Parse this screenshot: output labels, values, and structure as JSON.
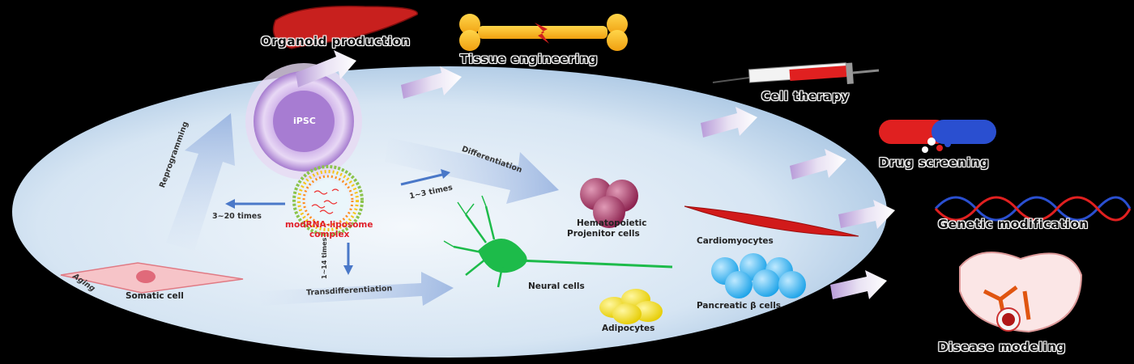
{
  "center": {
    "ipsc": "iPSC",
    "reprogramming": "Reprogramming",
    "differentiation": "Differentiation",
    "transdifferentiation": "Transdifferentiation",
    "somatic": "Somatic cell",
    "somatic_tag": "Aging",
    "complex_line1": "modRNA-liposome",
    "complex_line2": "complex",
    "times_left": "3~20 times",
    "times_right": "1~3 times",
    "times_down": "1~14 times"
  },
  "cells": {
    "hematopoietic_line1": "Hematopoietic",
    "hematopoietic_line2": "Projenitor cells",
    "neural": "Neural cells",
    "adipocytes": "Adipocytes",
    "cardiomyocytes": "Cardiomyocytes",
    "pancreatic": "Pancreatic β cells"
  },
  "applications": {
    "organoid": "Organoid production",
    "tissue": "Tissue engineering",
    "cell_therapy": "Cell therapy",
    "drug": "Drug screening",
    "genetic": "Genetic modification",
    "disease": "Disease modeling"
  },
  "colors": {
    "ellipse": "#c9dcef",
    "ipsc": "#b892d8",
    "arrow_blue": "#4a78c8",
    "label_red": "#e0202a"
  }
}
